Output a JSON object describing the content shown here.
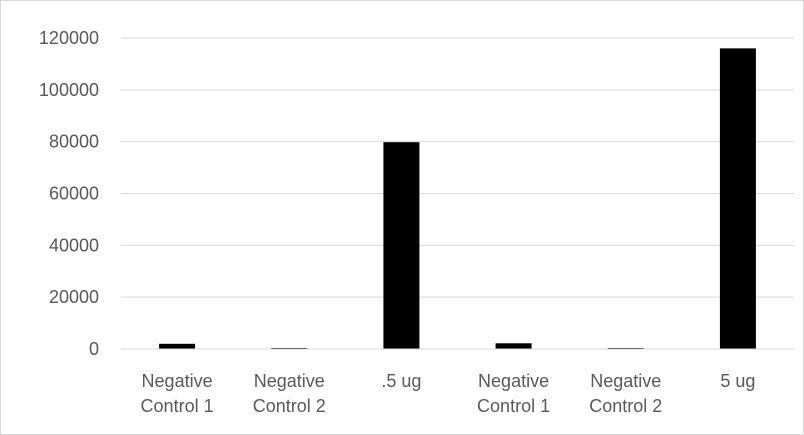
{
  "chart_data": {
    "type": "bar",
    "categories": [
      [
        "Negative",
        "Control 1"
      ],
      [
        "Negative",
        "Control 2"
      ],
      [
        ".5 ug"
      ],
      [
        "Negative",
        "Control 1"
      ],
      [
        "Negative",
        "Control 2"
      ],
      [
        "5 ug"
      ]
    ],
    "values": [
      2000,
      300,
      79800,
      2200,
      300,
      116000
    ],
    "ylim": [
      0,
      120000
    ],
    "yticks": [
      0,
      20000,
      40000,
      60000,
      80000,
      100000,
      120000
    ],
    "title": "",
    "xlabel": "",
    "ylabel": "",
    "grid": true,
    "legend": "none",
    "bar_color": "#000000",
    "grid_color": "#d9d9d9",
    "text_color": "#595959"
  }
}
